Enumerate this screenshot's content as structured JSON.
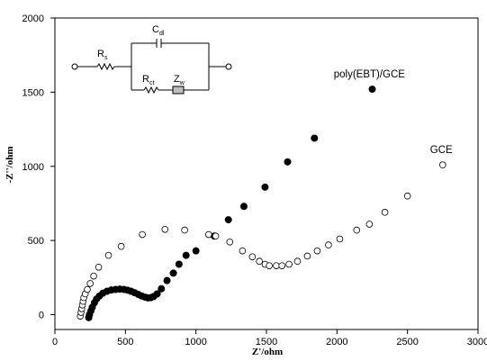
{
  "chart_data": {
    "type": "scatter",
    "title": "",
    "xlabel": "Z'/ohm",
    "ylabel": "-Z''/ohm",
    "xlim": [
      0,
      3000
    ],
    "ylim": [
      -100,
      2000
    ],
    "xticks": [
      0,
      500,
      1000,
      1500,
      2000,
      2500,
      3000
    ],
    "yticks": [
      0,
      500,
      1000,
      1500,
      2000
    ],
    "grid": false,
    "series": [
      {
        "name": "poly(EBT)/GCE",
        "marker": "filled-circle",
        "color": "#000000",
        "points": [
          [
            240,
            -20
          ],
          [
            245,
            0
          ],
          [
            255,
            25
          ],
          [
            265,
            50
          ],
          [
            280,
            80
          ],
          [
            295,
            105
          ],
          [
            315,
            125
          ],
          [
            340,
            145
          ],
          [
            370,
            158
          ],
          [
            400,
            166
          ],
          [
            430,
            170
          ],
          [
            460,
            172
          ],
          [
            490,
            170
          ],
          [
            515,
            165
          ],
          [
            540,
            158
          ],
          [
            565,
            148
          ],
          [
            590,
            137
          ],
          [
            615,
            126
          ],
          [
            640,
            118
          ],
          [
            660,
            113
          ],
          [
            680,
            115
          ],
          [
            700,
            122
          ],
          [
            725,
            140
          ],
          [
            755,
            175
          ],
          [
            795,
            230
          ],
          [
            840,
            280
          ],
          [
            880,
            340
          ],
          [
            930,
            400
          ],
          [
            1000,
            430
          ],
          [
            1130,
            530
          ],
          [
            1230,
            640
          ],
          [
            1340,
            730
          ],
          [
            1490,
            860
          ],
          [
            1650,
            1030
          ],
          [
            1840,
            1190
          ],
          [
            2250,
            1520
          ]
        ]
      },
      {
        "name": "GCE",
        "marker": "open-circle",
        "color": "#000000",
        "points": [
          [
            180,
            -10
          ],
          [
            185,
            15
          ],
          [
            190,
            40
          ],
          [
            195,
            65
          ],
          [
            200,
            90
          ],
          [
            205,
            115
          ],
          [
            215,
            140
          ],
          [
            230,
            170
          ],
          [
            250,
            210
          ],
          [
            275,
            260
          ],
          [
            310,
            320
          ],
          [
            380,
            400
          ],
          [
            470,
            460
          ],
          [
            620,
            540
          ],
          [
            780,
            575
          ],
          [
            920,
            570
          ],
          [
            1090,
            540
          ],
          [
            1140,
            530
          ],
          [
            1240,
            490
          ],
          [
            1330,
            430
          ],
          [
            1400,
            390
          ],
          [
            1450,
            360
          ],
          [
            1490,
            340
          ],
          [
            1520,
            330
          ],
          [
            1570,
            330
          ],
          [
            1610,
            330
          ],
          [
            1660,
            340
          ],
          [
            1720,
            360
          ],
          [
            1790,
            395
          ],
          [
            1860,
            430
          ],
          [
            1940,
            470
          ],
          [
            2020,
            510
          ],
          [
            2140,
            570
          ],
          [
            2230,
            610
          ],
          [
            2340,
            690
          ],
          [
            2500,
            800
          ],
          [
            2750,
            1010
          ]
        ]
      }
    ],
    "annotations": [
      {
        "text": "poly(EBT)/GCE",
        "x": 2230,
        "y": 1600
      },
      {
        "text": "GCE",
        "x": 2740,
        "y": 1090
      }
    ],
    "inset_circuit": {
      "elements": [
        {
          "kind": "resistor",
          "label": "R",
          "sub": "s"
        },
        {
          "kind": "capacitor",
          "label": "C",
          "sub": "dl"
        },
        {
          "kind": "resistor",
          "label": "R",
          "sub": "ct"
        },
        {
          "kind": "warburg",
          "label": "Z",
          "sub": "w"
        }
      ]
    }
  }
}
